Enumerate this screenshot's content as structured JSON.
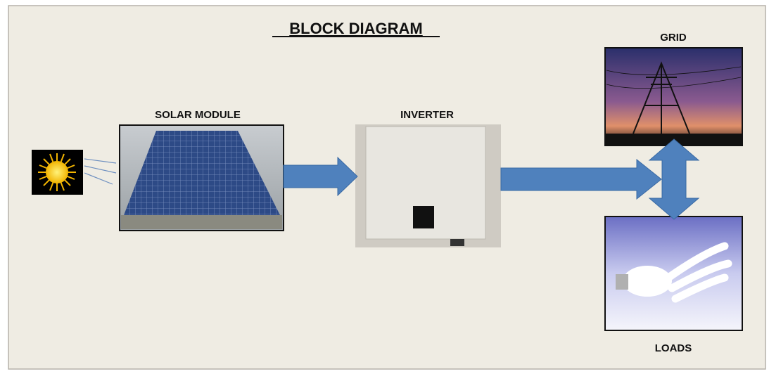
{
  "title": "BLOCK DIAGRAM",
  "blocks": {
    "solar_module": "SOLAR MODULE",
    "inverter": "INVERTER",
    "grid": "GRID",
    "loads": "LOADS"
  }
}
